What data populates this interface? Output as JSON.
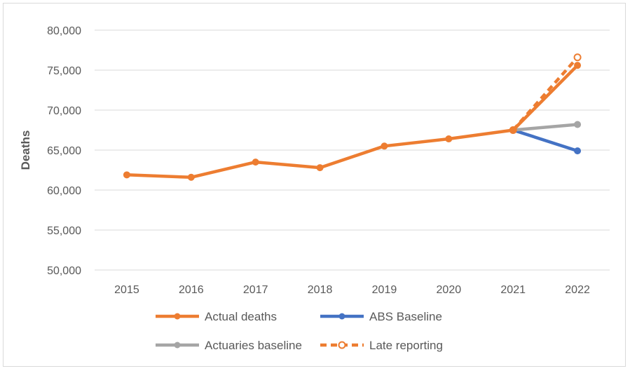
{
  "chart_data": {
    "type": "line",
    "title": "",
    "xlabel": "",
    "ylabel": "Deaths",
    "ylim": [
      50000,
      80000
    ],
    "ytick_step": 5000,
    "ytick_labels": [
      "50,000",
      "55,000",
      "60,000",
      "65,000",
      "70,000",
      "75,000",
      "80,000"
    ],
    "x": [
      "2015",
      "2016",
      "2017",
      "2018",
      "2019",
      "2020",
      "2021",
      "2022"
    ],
    "grid": true,
    "legend_position": "bottom",
    "series": [
      {
        "name": "Actual deaths",
        "color": "#ed7d31",
        "style": "solid",
        "marker": "filled-circle",
        "values": [
          61900,
          61600,
          63500,
          62800,
          65500,
          66400,
          67500,
          75600
        ]
      },
      {
        "name": "ABS Baseline",
        "color": "#4472c4",
        "style": "solid",
        "marker": "filled-circle",
        "values": [
          null,
          null,
          null,
          null,
          null,
          null,
          67500,
          64900
        ]
      },
      {
        "name": "Actuaries baseline",
        "color": "#a5a5a5",
        "style": "solid",
        "marker": "filled-circle",
        "values": [
          null,
          null,
          null,
          null,
          null,
          null,
          67500,
          68200
        ]
      },
      {
        "name": "Late reporting",
        "color": "#ed7d31",
        "style": "dashed",
        "marker": "open-circle",
        "values": [
          null,
          null,
          null,
          null,
          null,
          null,
          67500,
          76600
        ]
      }
    ]
  }
}
